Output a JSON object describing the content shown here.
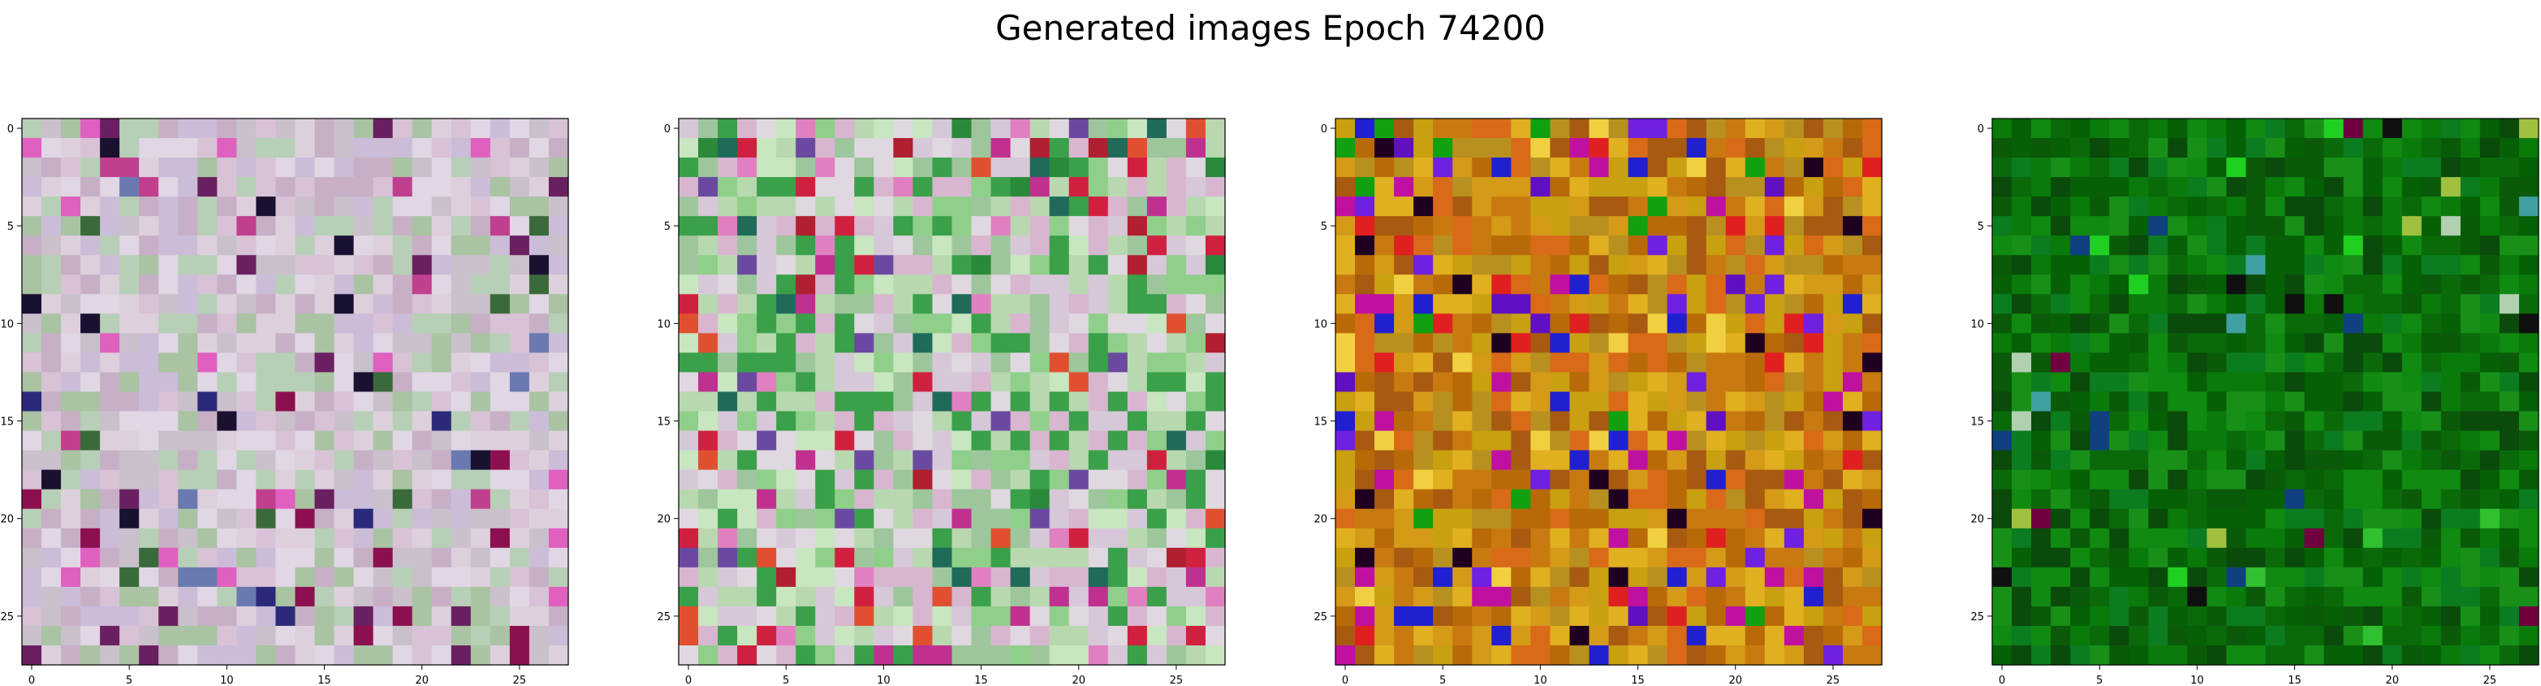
{
  "figure": {
    "title": "Generated images Epoch 74200"
  },
  "chart_data": [
    {
      "type": "heatmap",
      "grid_size": [
        28,
        28
      ],
      "xticks": [
        0,
        5,
        10,
        15,
        20,
        25
      ],
      "yticks": [
        0,
        5,
        10,
        15,
        20,
        25
      ],
      "xlim": [
        -0.5,
        27.5
      ],
      "ylim": [
        27.5,
        -0.5
      ],
      "palette": [
        "#c9c0cc",
        "#d8c2d6",
        "#b7cfb6",
        "#cbbcd8",
        "#e0d6e4",
        "#c7b0c5",
        "#a9c3a3",
        "#ddd0dc"
      ],
      "accents": [
        "#c0408f",
        "#6a2060",
        "#2b2a7a",
        "#8c1050",
        "#1a1030",
        "#e060c0",
        "#6a7ab0",
        "#3a6a3a"
      ],
      "accent_rate": 0.12,
      "seed": 11
    },
    {
      "type": "heatmap",
      "grid_size": [
        28,
        28
      ],
      "xticks": [
        0,
        5,
        10,
        15,
        20,
        25
      ],
      "yticks": [
        0,
        5,
        10,
        15,
        20,
        25
      ],
      "xlim": [
        -0.5,
        27.5
      ],
      "ylim": [
        27.5,
        -0.5
      ],
      "palette": [
        "#b8d8b0",
        "#8fcf8a",
        "#d6c8d8",
        "#c8e6c0",
        "#9ec69c",
        "#d8b6d0",
        "#3aa04a",
        "#e0d8e0"
      ],
      "accents": [
        "#d02040",
        "#c03090",
        "#2a8a3a",
        "#e05030",
        "#6a4aa0",
        "#206a5a",
        "#e080c0",
        "#b02030"
      ],
      "accent_rate": 0.16,
      "seed": 23
    },
    {
      "type": "heatmap",
      "grid_size": [
        28,
        28
      ],
      "xticks": [
        0,
        5,
        10,
        15,
        20,
        25
      ],
      "yticks": [
        0,
        5,
        10,
        15,
        20,
        25
      ],
      "xlim": [
        -0.5,
        27.5
      ],
      "ylim": [
        27.5,
        -0.5
      ],
      "palette": [
        "#c87a10",
        "#d49a18",
        "#b86a08",
        "#e0b020",
        "#a85a10",
        "#c8a010",
        "#d86a18",
        "#b89020"
      ],
      "accents": [
        "#2020d0",
        "#6010c0",
        "#10a010",
        "#c010a0",
        "#200020",
        "#e02020",
        "#7020e0",
        "#f0d040"
      ],
      "accent_rate": 0.18,
      "seed": 37
    },
    {
      "type": "heatmap",
      "grid_size": [
        28,
        28
      ],
      "xticks": [
        0,
        5,
        10,
        15,
        20,
        25
      ],
      "yticks": [
        0,
        5,
        10,
        15,
        20,
        25
      ],
      "xlim": [
        -0.5,
        27.5
      ],
      "ylim": [
        27.5,
        -0.5
      ],
      "palette": [
        "#0a7a0a",
        "#0a6a0a",
        "#108a10",
        "#0a5a0a",
        "#189018",
        "#066006",
        "#0c7c20",
        "#0a4a0a"
      ],
      "accents": [
        "#30c030",
        "#101010",
        "#40a0a0",
        "#a0c040",
        "#20d020",
        "#700040",
        "#104080",
        "#b0d0b0"
      ],
      "accent_rate": 0.06,
      "seed": 53
    }
  ]
}
